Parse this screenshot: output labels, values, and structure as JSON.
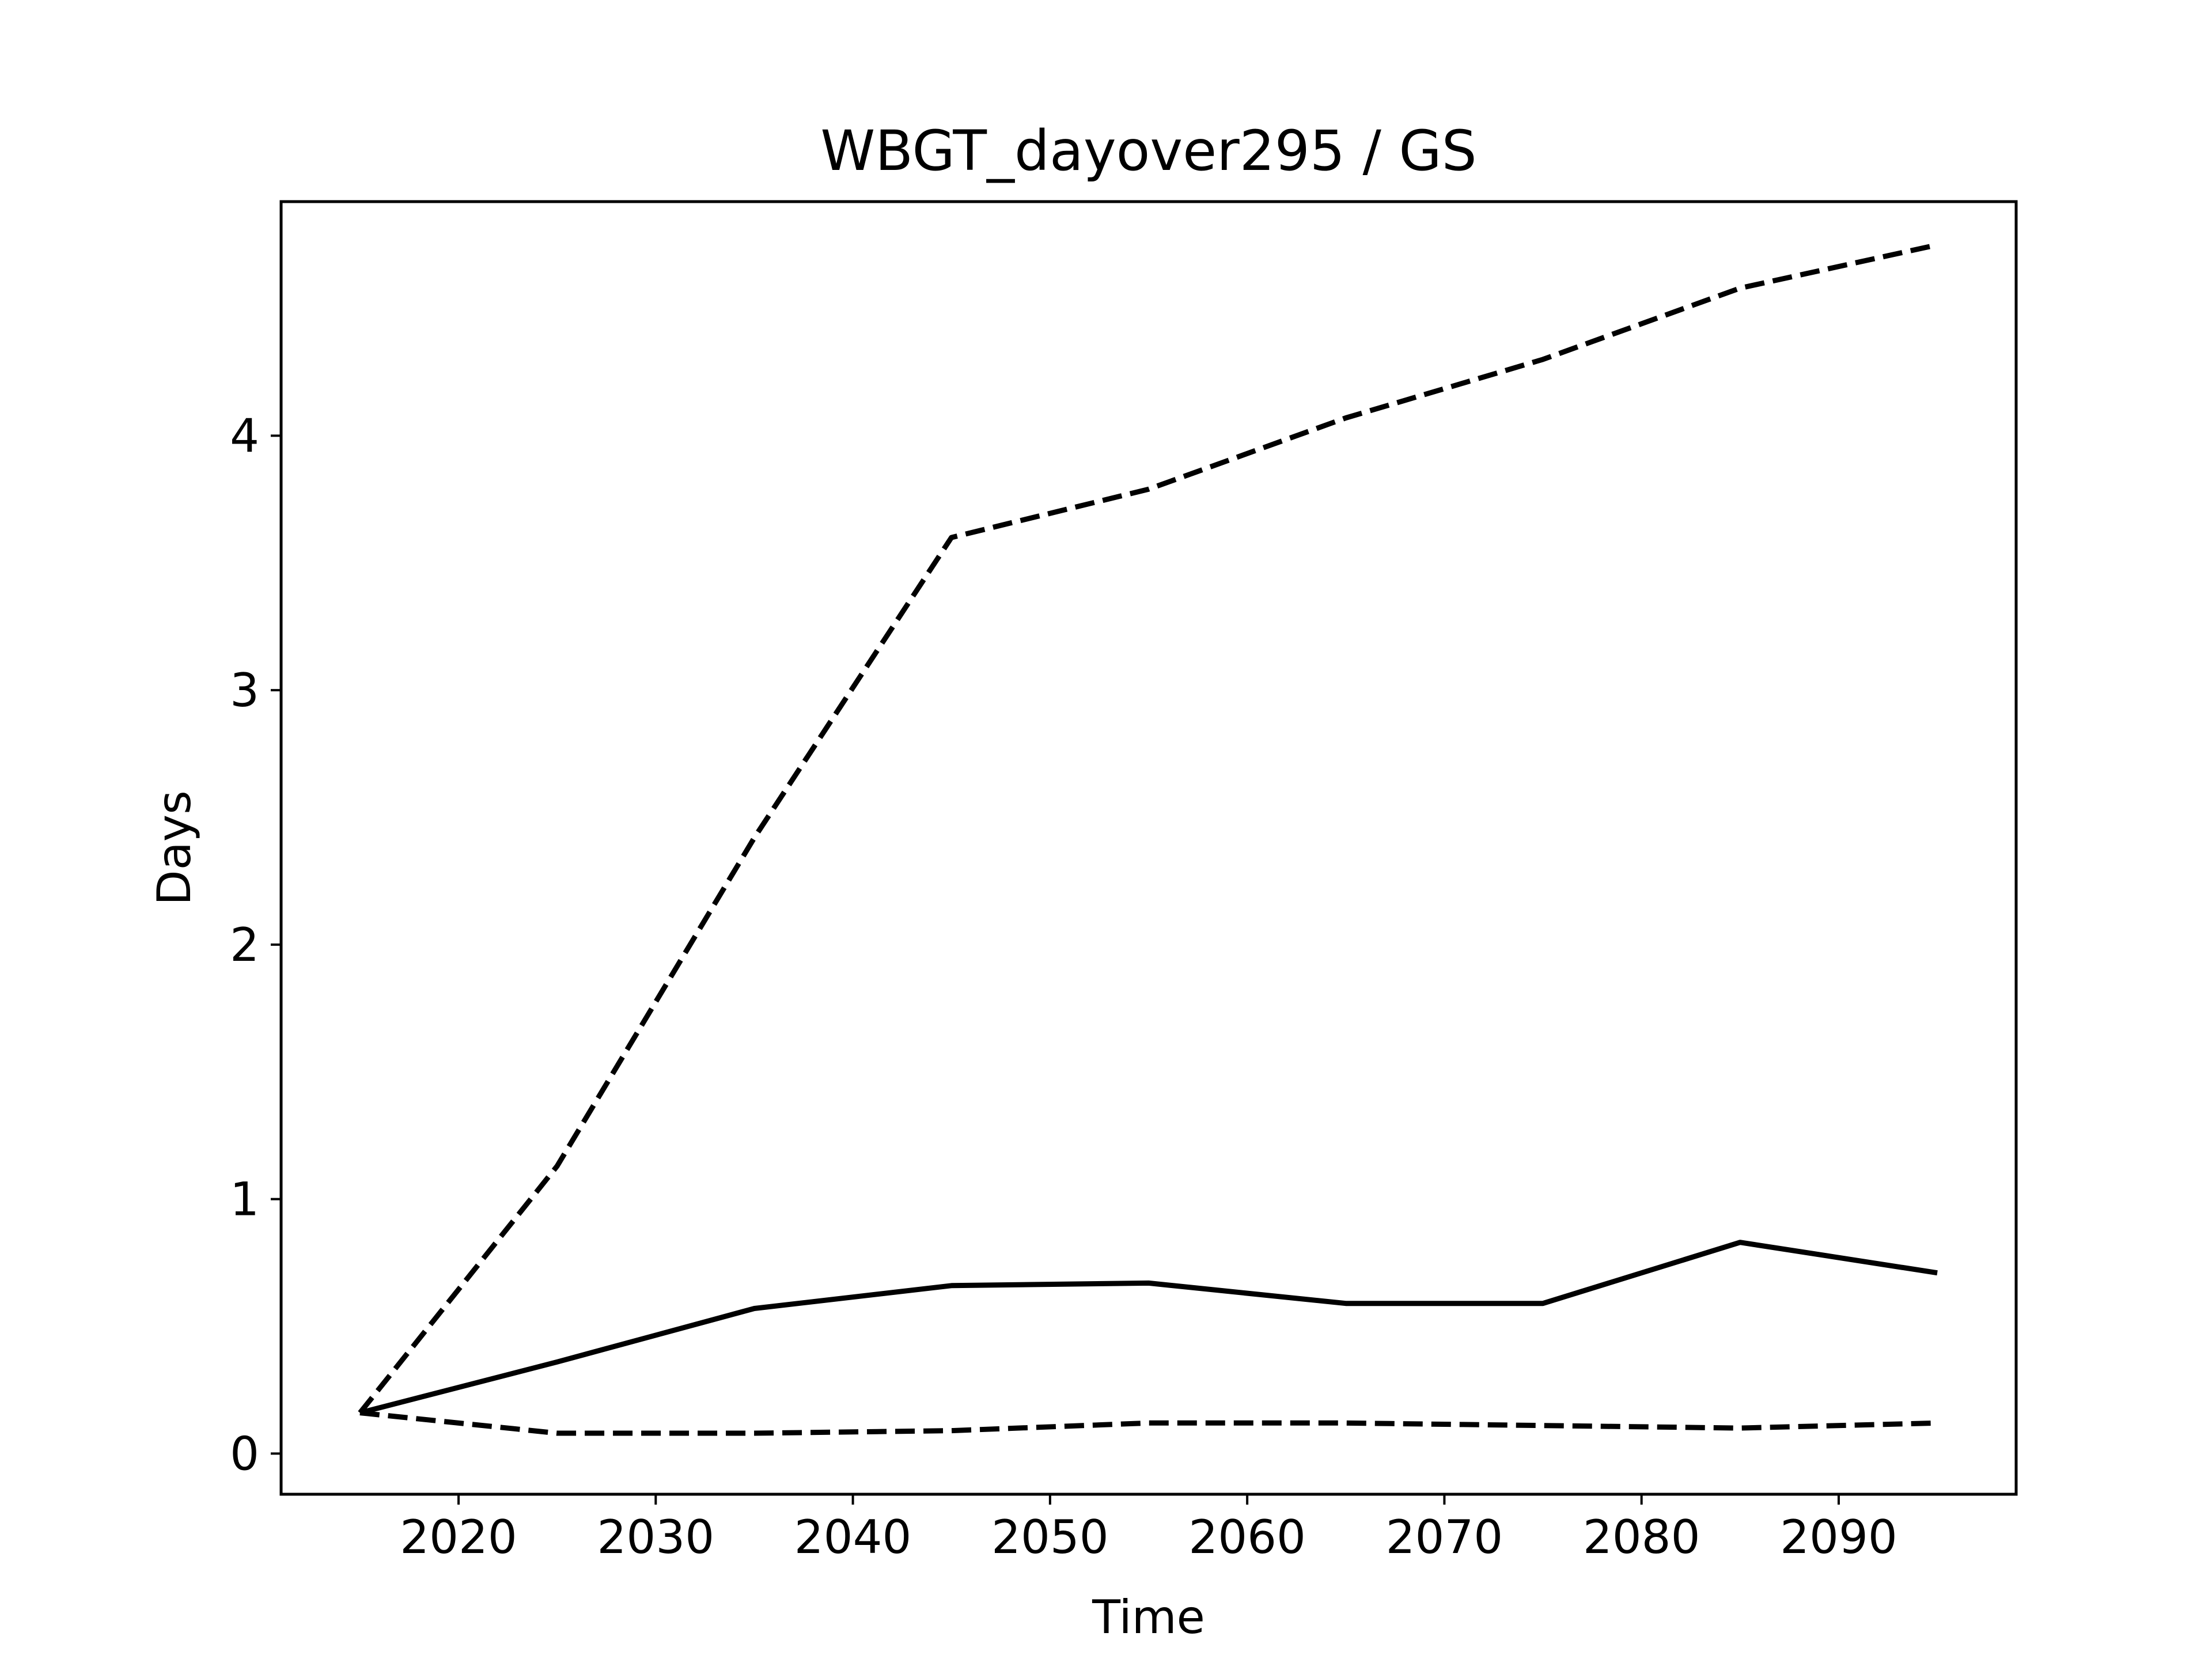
{
  "chart_data": {
    "type": "line",
    "title": "WBGT_dayover295 / GS",
    "xlabel": "Time",
    "ylabel": "Days",
    "xlim": [
      2011,
      2099
    ],
    "ylim": [
      -0.16,
      4.92
    ],
    "xticks": [
      2020,
      2030,
      2040,
      2050,
      2060,
      2070,
      2080,
      2090
    ],
    "yticks": [
      0,
      1,
      2,
      3,
      4
    ],
    "grid": false,
    "legend": "none",
    "x": [
      2015,
      2025,
      2035,
      2045,
      2055,
      2065,
      2075,
      2085,
      2095
    ],
    "series": [
      {
        "style": "solid",
        "color": "#000000",
        "values": [
          0.16,
          0.36,
          0.57,
          0.66,
          0.67,
          0.59,
          0.59,
          0.83,
          0.71
        ]
      },
      {
        "style": "dashed",
        "color": "#000000",
        "values": [
          0.16,
          1.13,
          2.42,
          3.6,
          3.79,
          4.07,
          4.3,
          4.58,
          4.75
        ]
      },
      {
        "style": "dashed",
        "color": "#000000",
        "values": [
          0.16,
          0.08,
          0.08,
          0.09,
          0.12,
          0.12,
          0.11,
          0.1,
          0.12
        ]
      }
    ]
  }
}
